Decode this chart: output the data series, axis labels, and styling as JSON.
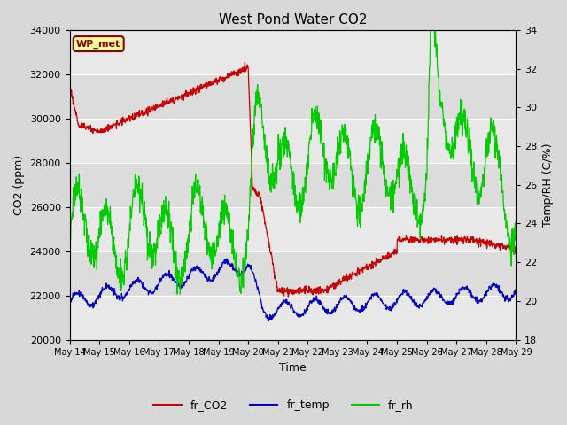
{
  "title": "West Pond Water CO2",
  "xlabel": "Time",
  "ylabel_left": "CO2 (ppm)",
  "ylabel_right": "Temp/RH (C/%)",
  "annotation": "WP_met",
  "annotation_bbox": {
    "facecolor": "#FFFF99",
    "edgecolor": "#8B0000",
    "boxstyle": "round,pad=0.3"
  },
  "annotation_text_color": "#8B0000",
  "ylim_left": [
    20000,
    34000
  ],
  "ylim_right": [
    18,
    34
  ],
  "yticks_left": [
    20000,
    22000,
    24000,
    26000,
    28000,
    30000,
    32000,
    34000
  ],
  "yticks_right": [
    18,
    20,
    22,
    24,
    26,
    28,
    30,
    32,
    34
  ],
  "n_days": 15,
  "xtick_labels": [
    "May 14",
    "May 15",
    "May 16",
    "May 17",
    "May 18",
    "May 19",
    "May 20",
    "May 21",
    "May 22",
    "May 23",
    "May 24",
    "May 25",
    "May 26",
    "May 27",
    "May 28",
    "May 29"
  ],
  "bg_color": "#D8D8D8",
  "plot_bg_color_light": "#E8E8E8",
  "plot_bg_color_dark": "#D0D0D0",
  "grid_color": "white",
  "line_colors": {
    "fr_CO2": "#CC0000",
    "fr_temp": "#0000CC",
    "fr_rh": "#00CC00"
  },
  "legend_entries": [
    "fr_CO2",
    "fr_temp",
    "fr_rh"
  ]
}
